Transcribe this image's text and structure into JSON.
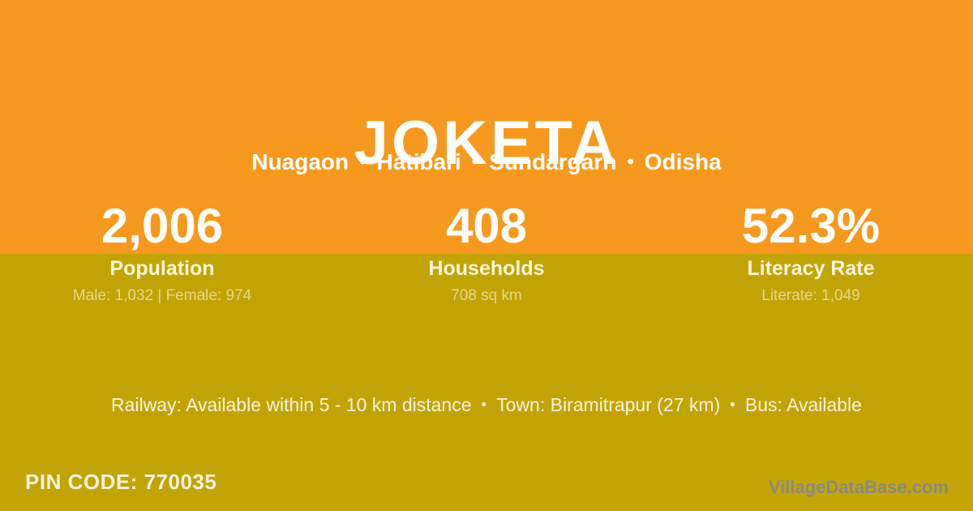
{
  "colors": {
    "top_band": "#F7991E",
    "bottom_band": "#C2A406",
    "primary_text": "#FFFFFF",
    "cream_text": "#FDF5DC",
    "watermark_grey": "#87878B"
  },
  "header": {
    "title": "JOKETA",
    "location_parts": [
      "Nuagaon",
      "Hatibari",
      "Sundargarh",
      "Odisha"
    ],
    "separator": "•"
  },
  "stats": [
    {
      "value": "2,006",
      "label": "Population",
      "detail": "Male: 1,032 | Female: 974"
    },
    {
      "value": "408",
      "label": "Households",
      "detail": "708 sq km"
    },
    {
      "value": "52.3%",
      "label": "Literacy Rate",
      "detail": "Literate: 1,049"
    }
  ],
  "transport": {
    "railway": "Railway: Available within 5 - 10 km distance",
    "town": "Town: Biramitrapur (27 km)",
    "bus": "Bus: Available",
    "separator": "•"
  },
  "footer": {
    "pin_label": "PIN CODE:",
    "pin_value": "770035",
    "watermark": "VillageDataBase.com"
  }
}
